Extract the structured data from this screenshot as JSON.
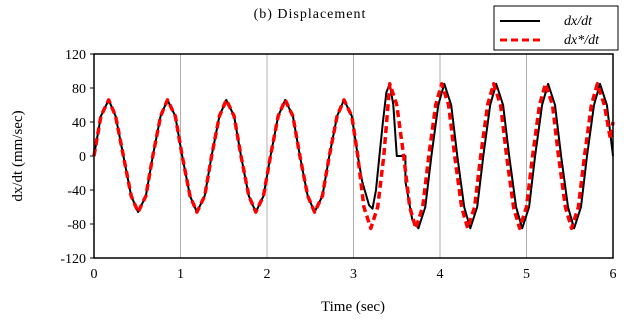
{
  "chart_data": {
    "type": "line",
    "title": "(b) Displacement",
    "xlabel": "Time (sec)",
    "ylabel": "dx/dt (mm/sec)",
    "xlim": [
      0,
      6
    ],
    "ylim": [
      -120,
      120
    ],
    "xticks": [
      "0",
      "1",
      "2",
      "3",
      "4",
      "5",
      "6"
    ],
    "yticks": [
      "120",
      "80",
      "40",
      "0",
      "-40",
      "-80",
      "-120"
    ],
    "grid": "vertical",
    "legend_position": "top-right",
    "series": [
      {
        "name": "dx/dt",
        "color": "#000000",
        "style": "solid",
        "x": [
          0,
          0.08,
          0.17,
          0.25,
          0.34,
          0.43,
          0.51,
          0.6,
          0.68,
          0.77,
          0.85,
          0.94,
          1.02,
          1.11,
          1.19,
          1.28,
          1.36,
          1.45,
          1.53,
          1.62,
          1.7,
          1.79,
          1.87,
          1.96,
          2.04,
          2.13,
          2.21,
          2.3,
          2.38,
          2.47,
          2.55,
          2.64,
          2.72,
          2.81,
          2.89,
          2.98,
          3.05,
          3.1,
          3.18,
          3.22,
          3.26,
          3.3,
          3.34,
          3.38,
          3.42,
          3.46,
          3.5,
          3.5,
          3.6,
          3.6,
          3.68,
          3.75,
          3.83,
          3.9,
          3.98,
          4.05,
          4.13,
          4.2,
          4.28,
          4.35,
          4.43,
          4.5,
          4.58,
          4.65,
          4.73,
          4.8,
          4.88,
          4.95,
          5.03,
          5.1,
          5.18,
          5.25,
          5.33,
          5.4,
          5.48,
          5.55,
          5.63,
          5.7,
          5.78,
          5.85,
          5.93,
          6.0
        ],
        "y": [
          0,
          47,
          66,
          47,
          0,
          -47,
          -66,
          -47,
          0,
          47,
          66,
          47,
          0,
          -47,
          -66,
          -47,
          0,
          47,
          66,
          47,
          0,
          -47,
          -66,
          -47,
          0,
          47,
          66,
          47,
          0,
          -47,
          -66,
          -47,
          0,
          47,
          66,
          47,
          0,
          -30,
          -58,
          -62,
          -40,
          0,
          40,
          75,
          85,
          60,
          0,
          0,
          0,
          -30,
          -75,
          -85,
          -60,
          0,
          60,
          85,
          60,
          0,
          -60,
          -85,
          -60,
          0,
          60,
          85,
          60,
          0,
          -60,
          -85,
          -60,
          0,
          60,
          85,
          60,
          0,
          -60,
          -85,
          -60,
          0,
          60,
          85,
          60,
          0
        ]
      },
      {
        "name": "dx*/dt",
        "color": "#ff0000",
        "style": "dashed",
        "x": [
          0,
          0.08,
          0.17,
          0.25,
          0.34,
          0.43,
          0.51,
          0.6,
          0.68,
          0.77,
          0.85,
          0.94,
          1.02,
          1.11,
          1.19,
          1.28,
          1.36,
          1.45,
          1.53,
          1.62,
          1.7,
          1.79,
          1.87,
          1.96,
          2.04,
          2.13,
          2.21,
          2.3,
          2.38,
          2.47,
          2.55,
          2.64,
          2.72,
          2.81,
          2.89,
          2.98,
          3.05,
          3.12,
          3.2,
          3.28,
          3.35,
          3.42,
          3.5,
          3.58,
          3.65,
          3.72,
          3.8,
          3.87,
          3.95,
          4.02,
          4.1,
          4.17,
          4.25,
          4.32,
          4.4,
          4.47,
          4.55,
          4.62,
          4.7,
          4.77,
          4.85,
          4.92,
          5.0,
          5.07,
          5.15,
          5.22,
          5.3,
          5.37,
          5.45,
          5.52,
          5.6,
          5.67,
          5.75,
          5.82,
          5.9,
          5.97,
          6.0
        ],
        "y": [
          0,
          47,
          66,
          47,
          0,
          -47,
          -66,
          -47,
          0,
          47,
          66,
          47,
          0,
          -47,
          -66,
          -47,
          0,
          47,
          66,
          47,
          0,
          -47,
          -66,
          -47,
          0,
          47,
          66,
          47,
          0,
          -47,
          -66,
          -47,
          0,
          47,
          66,
          47,
          0,
          -60,
          -85,
          -60,
          0,
          85,
          60,
          0,
          -60,
          -85,
          -60,
          0,
          60,
          85,
          60,
          0,
          -60,
          -85,
          -60,
          0,
          60,
          85,
          60,
          0,
          -60,
          -85,
          -60,
          0,
          60,
          85,
          60,
          0,
          -60,
          -85,
          -60,
          0,
          60,
          85,
          60,
          20,
          40
        ]
      }
    ]
  }
}
